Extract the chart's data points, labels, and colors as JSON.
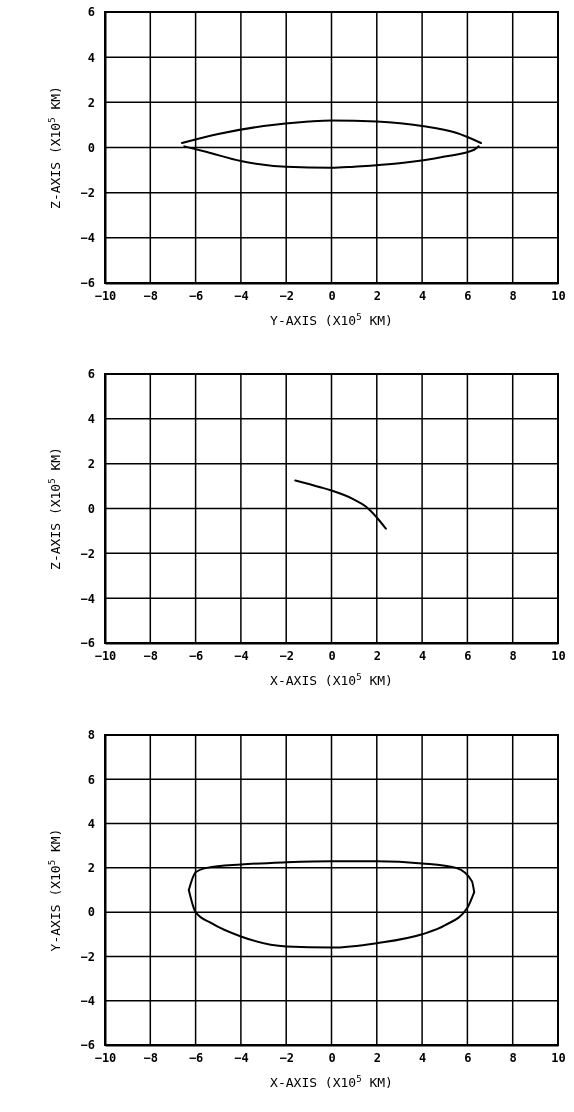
{
  "chart_data": [
    {
      "type": "line",
      "xlabel": "Y-AXIS (X10$^{5}$ KM)",
      "ylabel": "Z-AXIS (X10$^{5}$ KM)",
      "xlim": [
        -10,
        10
      ],
      "ylim": [
        -6,
        6
      ],
      "xticks": [
        -10,
        -8,
        -6,
        -4,
        -2,
        0,
        2,
        4,
        6,
        8,
        10
      ],
      "yticks": [
        -6,
        -4,
        -2,
        0,
        2,
        4,
        6
      ],
      "grid": true,
      "line_style": "solid",
      "series": [
        {
          "color": "#000000",
          "x": [
            -6.6,
            -5,
            -3,
            -1,
            0,
            2,
            4,
            5.5,
            6.6
          ],
          "values": [
            0.2,
            0.6,
            0.95,
            1.15,
            1.2,
            1.15,
            0.95,
            0.65,
            0.2
          ]
        },
        {
          "color": "#000000",
          "x": [
            -6.5,
            -5.5,
            -4,
            -2,
            0,
            1,
            3,
            5,
            6.3,
            6.5
          ],
          "values": [
            0.05,
            -0.2,
            -0.6,
            -0.85,
            -0.9,
            -0.85,
            -0.7,
            -0.4,
            -0.1,
            0.05
          ]
        }
      ]
    },
    {
      "type": "line",
      "xlabel": "X-AXIS (X10$^{5}$ KM)",
      "ylabel": "Z-AXIS (X10$^{5}$ KM)",
      "xlim": [
        -10,
        10
      ],
      "ylim": [
        -6,
        6
      ],
      "xticks": [
        -10,
        -8,
        -6,
        -4,
        -2,
        0,
        2,
        4,
        6,
        8,
        10
      ],
      "yticks": [
        -6,
        -4,
        -2,
        0,
        2,
        4,
        6
      ],
      "grid": true,
      "line_style": "solid",
      "series": [
        {
          "color": "#000000",
          "x": [
            -1.6,
            -0.5,
            0,
            1,
            1.5,
            2,
            2.4
          ],
          "values": [
            1.25,
            0.95,
            0.8,
            0.4,
            0.1,
            -0.4,
            -0.9
          ]
        }
      ]
    },
    {
      "type": "line",
      "xlabel": "X-AXIS (X10$^{5}$ KM)",
      "ylabel": "Y-AXIS (X10$^{5}$ KM)",
      "xlim": [
        -10,
        10
      ],
      "ylim": [
        -6,
        8
      ],
      "xticks": [
        -10,
        -8,
        -6,
        -4,
        -2,
        0,
        2,
        4,
        6,
        8,
        10
      ],
      "yticks": [
        -6,
        -4,
        -2,
        0,
        2,
        4,
        6,
        8
      ],
      "grid": true,
      "line_style": "solid",
      "series": [
        {
          "color": "#000000",
          "x": [
            -6.3,
            -6,
            -5.5,
            -4,
            -2,
            0,
            2,
            4,
            5.5,
            6.2,
            6.3
          ],
          "values": [
            1.0,
            1.8,
            2.0,
            2.15,
            2.25,
            2.3,
            2.3,
            2.2,
            2.0,
            1.4,
            0.9
          ]
        },
        {
          "color": "#000000",
          "x": [
            -6.3,
            -6,
            -5.3,
            -4,
            -2,
            0,
            2,
            4,
            5,
            6,
            6.3
          ],
          "values": [
            1.0,
            0,
            -0.5,
            -1.1,
            -1.55,
            -1.6,
            -1.4,
            -1.0,
            -0.6,
            0.2,
            0.9
          ]
        }
      ]
    }
  ]
}
